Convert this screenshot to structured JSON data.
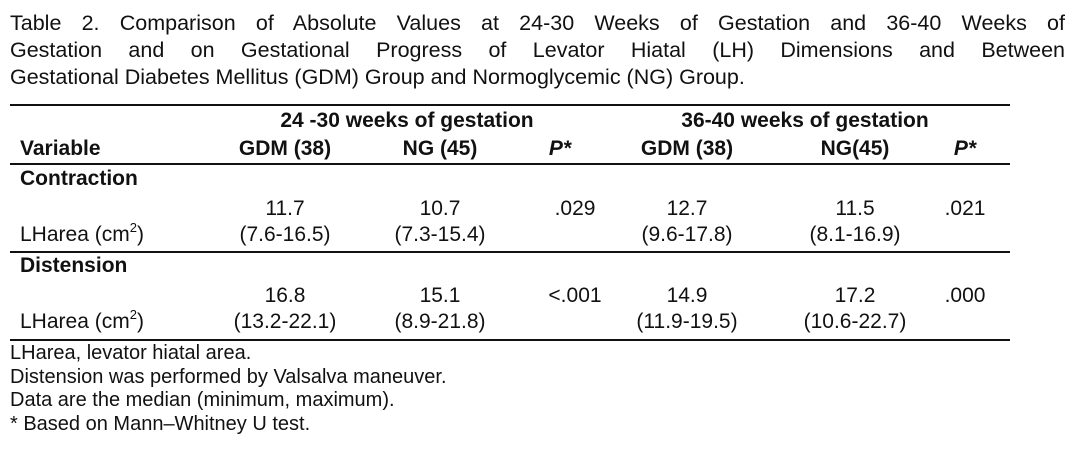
{
  "caption": [
    "Table 2. Comparison of Absolute Values at  24-30 Weeks of Gestation and 36-40 Weeks of",
    "Gestation and on Gestational  Progress of Levator Hiatal (LH) Dimensions and Between",
    "Gestational Diabetes Mellitus (GDM) Group and Normoglycemic (NG) Group."
  ],
  "table": {
    "group_headers": [
      "24 -30 weeks of gestation",
      "36-40 weeks of gestation"
    ],
    "columns": [
      "Variable",
      "GDM (38)",
      "NG (45)",
      "P*",
      "GDM (38)",
      "NG(45)",
      "P*"
    ],
    "sections": [
      {
        "label": "Contraction",
        "row": {
          "variable": "LHarea (cm",
          "variable_sup": "2",
          "variable_end": ")",
          "gdm1_median": "11.7",
          "gdm1_range": "(7.6-16.5)",
          "ng1_median": "10.7",
          "ng1_range": "(7.3-15.4)",
          "p1": ".029",
          "gdm2_median": "12.7",
          "gdm2_range": "(9.6-17.8)",
          "ng2_median": "11.5",
          "ng2_range": "(8.1-16.9)",
          "p2": ".021"
        }
      },
      {
        "label": "Distension",
        "row": {
          "variable": "LHarea (cm",
          "variable_sup": "2",
          "variable_end": ")",
          "gdm1_median": "16.8",
          "gdm1_range": "(13.2-22.1)",
          "ng1_median": "15.1",
          "ng1_range": "(8.9-21.8)",
          "p1": "<.001",
          "gdm2_median": "14.9",
          "gdm2_range": "(11.9-19.5)",
          "ng2_median": "17.2",
          "ng2_range": "(10.6-22.7)",
          "p2": ".000"
        }
      }
    ]
  },
  "notes": [
    "LHarea, levator hiatal area.",
    "Distension was performed by Valsalva maneuver.",
    "Data are the median (minimum, maximum).",
    "* Based on Mann–Whitney U test."
  ]
}
